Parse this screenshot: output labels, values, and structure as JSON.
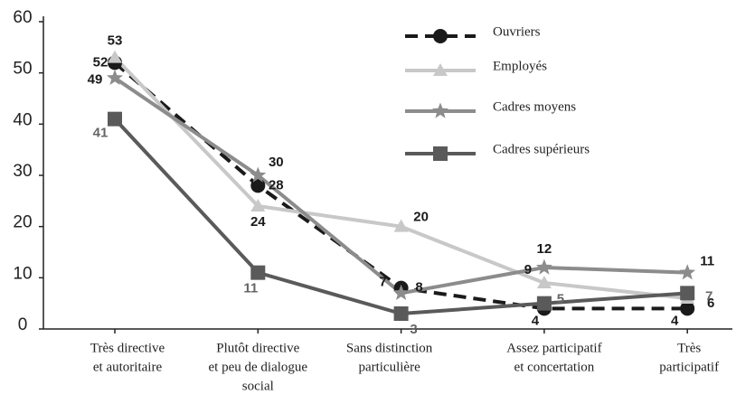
{
  "chart_data": {
    "type": "line",
    "categories": [
      [
        "Très directive",
        "et autoritaire"
      ],
      [
        "Plutôt directive",
        "et peu de dialogue",
        "social"
      ],
      [
        "Sans distinction",
        "particulière"
      ],
      [
        "Assez participatif",
        "et concertation"
      ],
      [
        "Très",
        "participatif"
      ]
    ],
    "series": [
      {
        "name": "Ouvriers",
        "color": "#1a1a1a",
        "dash": true,
        "marker": "circle",
        "values": [
          52,
          28,
          8,
          4,
          4
        ]
      },
      {
        "name": "Employés",
        "color": "#c8c8c8",
        "dash": false,
        "marker": "triangle",
        "values": [
          53,
          24,
          20,
          9,
          6
        ]
      },
      {
        "name": "Cadres moyens",
        "color": "#8c8c8c",
        "dash": false,
        "marker": "star",
        "values": [
          49,
          30,
          7,
          12,
          11
        ]
      },
      {
        "name": "Cadres supérieurs",
        "color": "#5a5a5a",
        "dash": false,
        "marker": "square",
        "values": [
          41,
          11,
          3,
          5,
          7
        ]
      }
    ],
    "ylim": [
      0,
      60
    ],
    "yticks": [
      0,
      10,
      20,
      30,
      40,
      50,
      60
    ],
    "grid": false
  }
}
